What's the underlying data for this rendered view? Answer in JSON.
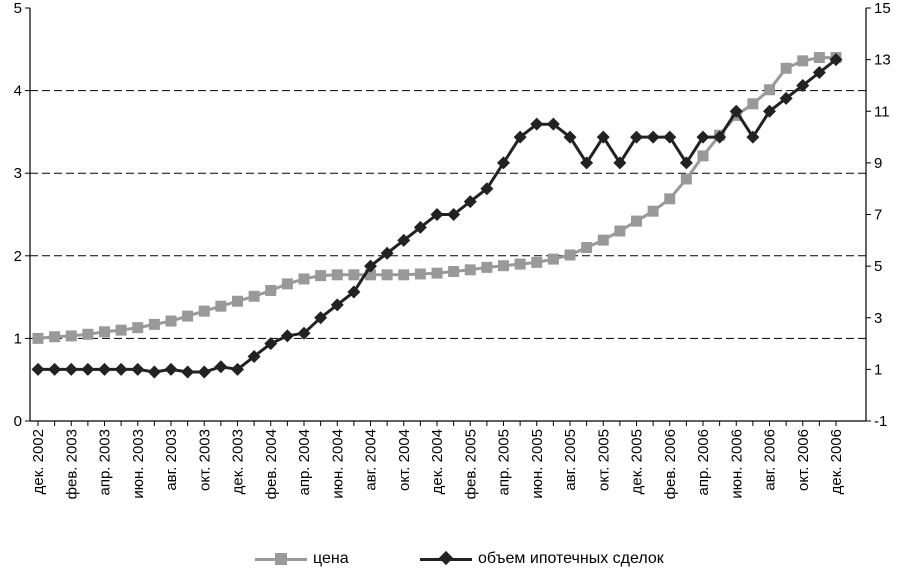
{
  "chart_data": {
    "type": "line",
    "title": "",
    "xlabel": "",
    "ylabel": "",
    "y_left": {
      "min": 0,
      "max": 5,
      "ticks": [
        "0",
        "1",
        "2",
        "3",
        "4",
        "5"
      ]
    },
    "y_right": {
      "min": -1,
      "max": 15,
      "ticks": [
        "-1",
        "1",
        "3",
        "5",
        "7",
        "9",
        "11",
        "13",
        "15"
      ]
    },
    "grid": "horizontal dashed at left-axis ticks",
    "legend_position": "bottom",
    "x_tick_labels": [
      "дек. 2002",
      "фев. 2003",
      "апр. 2003",
      "июн. 2003",
      "авг. 2003",
      "окт. 2003",
      "дек. 2003",
      "фев. 2004",
      "апр. 2004",
      "июн. 2004",
      "авг. 2004",
      "окт. 2004",
      "дек. 2004",
      "фев. 2005",
      "апр. 2005",
      "июн. 2005",
      "авг. 2005",
      "окт. 2005",
      "дек. 2005",
      "фев. 2006",
      "апр. 2006",
      "июн. 2006",
      "авг. 2006",
      "окт. 2006",
      "дек. 2006"
    ],
    "series": [
      {
        "name": "цена",
        "axis": "left",
        "color": "#999999",
        "marker": "square",
        "values": [
          1.0,
          1.02,
          1.03,
          1.05,
          1.08,
          1.1,
          1.13,
          1.17,
          1.21,
          1.27,
          1.33,
          1.39,
          1.45,
          1.51,
          1.58,
          1.66,
          1.72,
          1.76,
          1.77,
          1.77,
          1.77,
          1.77,
          1.77,
          1.78,
          1.79,
          1.81,
          1.83,
          1.86,
          1.88,
          1.9,
          1.92,
          1.96,
          2.01,
          2.1,
          2.19,
          2.3,
          2.42,
          2.54,
          2.69,
          2.93,
          3.21,
          3.46,
          3.7,
          3.84,
          4.01,
          4.27,
          4.36,
          4.4,
          4.4
        ]
      },
      {
        "name": "объем ипотечных сделок",
        "axis": "right",
        "color": "#222222",
        "marker": "diamond",
        "values": [
          1.0,
          1.0,
          1.0,
          1.0,
          1.0,
          1.0,
          1.0,
          0.9,
          1.0,
          0.9,
          0.9,
          1.1,
          1.0,
          1.5,
          2.0,
          2.3,
          2.4,
          3.0,
          3.5,
          4.0,
          5.0,
          5.5,
          6.0,
          6.5,
          7.0,
          7.0,
          7.5,
          8.0,
          9.0,
          10.0,
          10.5,
          10.5,
          10.0,
          9.0,
          10.0,
          9.0,
          10.0,
          10.0,
          10.0,
          9.0,
          10.0,
          10.0,
          11.0,
          10.0,
          11.0,
          11.5,
          12.0,
          12.5,
          13.0
        ]
      }
    ]
  }
}
